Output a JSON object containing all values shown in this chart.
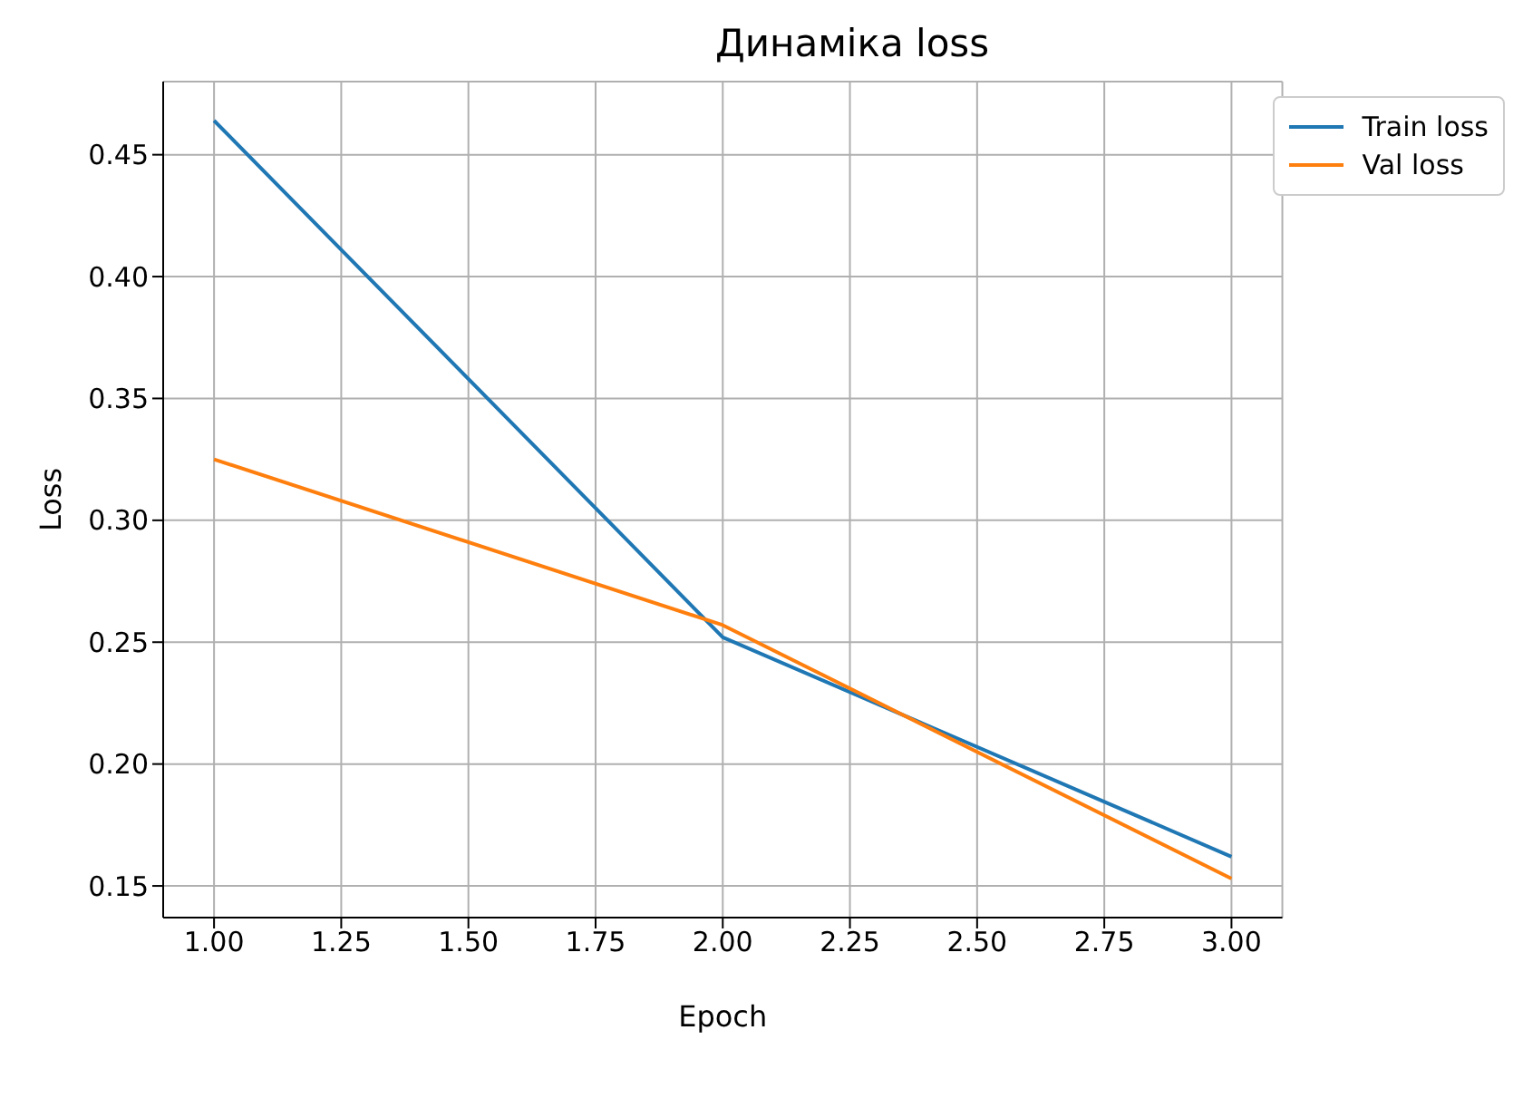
{
  "chart_data": {
    "type": "line",
    "title": "Динаміка loss",
    "xlabel": "Epoch",
    "ylabel": "Loss",
    "x": [
      1,
      2,
      3
    ],
    "series": [
      {
        "name": "Train loss",
        "color": "#1f77b4",
        "values": [
          0.464,
          0.252,
          0.162
        ]
      },
      {
        "name": "Val loss",
        "color": "#ff7f0e",
        "values": [
          0.325,
          0.257,
          0.153
        ]
      }
    ],
    "xlim": [
      0.9,
      3.1
    ],
    "xticks": [
      {
        "value": 1,
        "label": "1.00"
      },
      {
        "value": 1.25,
        "label": "1.25"
      },
      {
        "value": 1.5,
        "label": "1.50"
      },
      {
        "value": 1.75,
        "label": "1.75"
      },
      {
        "value": 2,
        "label": "2.00"
      },
      {
        "value": 2.25,
        "label": "2.25"
      },
      {
        "value": 2.5,
        "label": "2.50"
      },
      {
        "value": 2.75,
        "label": "2.75"
      },
      {
        "value": 3,
        "label": "3.00"
      }
    ],
    "ylim": [
      0.137,
      0.48
    ],
    "yticks": [
      0.15,
      {
        "value": 0.2,
        "label": "0.20"
      },
      0.25,
      {
        "value": 0.3,
        "label": "0.30"
      },
      0.35,
      {
        "value": 0.4,
        "label": "0.40"
      },
      0.45
    ],
    "grid": true,
    "legend": "top right",
    "marker": "none",
    "line_style": "solid"
  }
}
